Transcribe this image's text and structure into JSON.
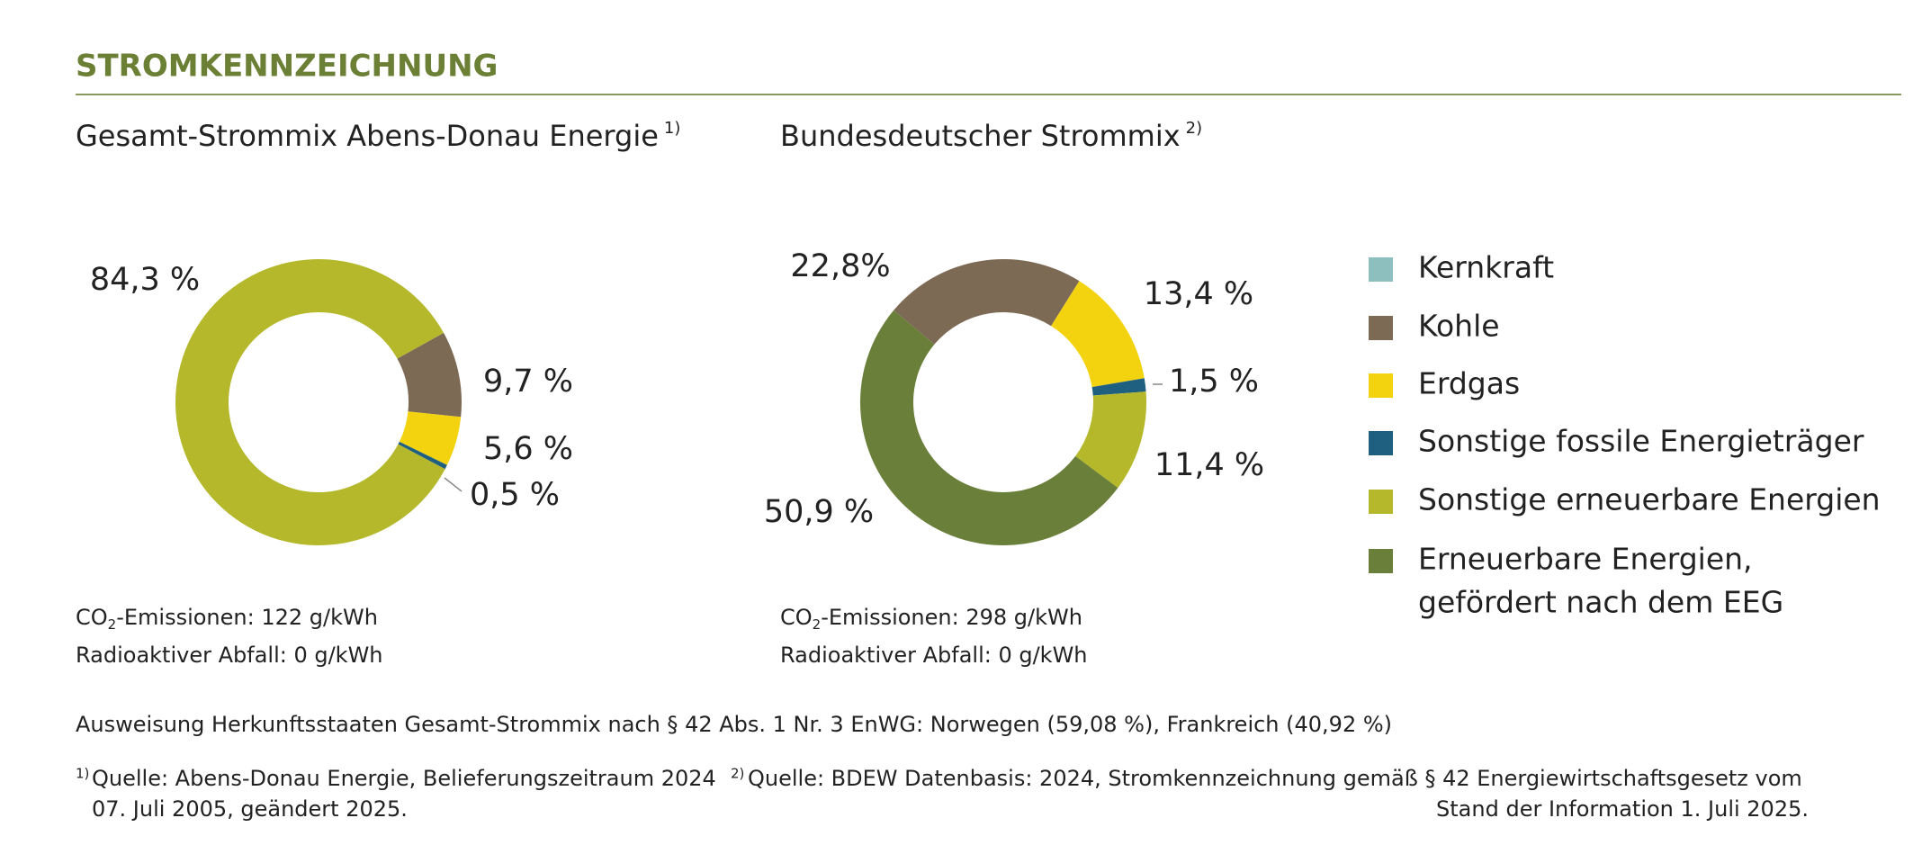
{
  "header": {
    "title": "STROMKENNZEICHNUNG"
  },
  "chart_data": [
    {
      "type": "donut",
      "title": "Gesamt-Strommix Abens-Donau Energie",
      "title_note": "1)",
      "values": [
        9.7,
        5.6,
        0.5,
        84.3
      ],
      "value_labels": [
        "9,7 %",
        "5,6 %",
        "0,5 %",
        "84,3 %"
      ],
      "colors": [
        "#7d6a55",
        "#f3d20f",
        "#1f5f80",
        "#b4b82a"
      ],
      "info": [
        {
          "prefix": "CO",
          "sub": "2",
          "text": "-Emissionen: 122 g/kWh"
        },
        {
          "text": "Radioaktiver Abfall: 0 g/kWh"
        }
      ]
    },
    {
      "type": "donut",
      "title": "Bundesdeutscher Strommix",
      "title_note": "2)",
      "values": [
        22.8,
        13.4,
        1.5,
        11.4,
        50.9
      ],
      "value_labels": [
        "22,8%",
        "13,4 %",
        "1,5 %",
        "11,4 %",
        "50,9 %"
      ],
      "colors": [
        "#7d6a55",
        "#f3d20f",
        "#1f5f80",
        "#b4b82a",
        "#6a7f3a"
      ],
      "info": [
        {
          "prefix": "CO",
          "sub": "2",
          "text": "-Emissionen: 298 g/kWh"
        },
        {
          "text": "Radioaktiver Abfall: 0 g/kWh"
        }
      ]
    }
  ],
  "legend": {
    "items": [
      {
        "lines": [
          "Kernkraft"
        ],
        "color": "#8dbfbf"
      },
      {
        "lines": [
          "Kohle"
        ],
        "color": "#7d6a55"
      },
      {
        "lines": [
          "Erdgas"
        ],
        "color": "#f3d20f"
      },
      {
        "lines": [
          "Sonstige fossile Energieträger"
        ],
        "color": "#1f5f80"
      },
      {
        "lines": [
          "Sonstige erneuerbare Energien"
        ],
        "color": "#b4b82a"
      },
      {
        "lines": [
          "Erneuerbare Energien,",
          "gefördert nach dem EEG"
        ],
        "color": "#6a7f3a"
      }
    ]
  },
  "origin_note": "Ausweisung Herkunftsstaaten Gesamt-Strommix nach § 42 Abs. 1 Nr. 3 EnWG: Norwegen (59,08 %), Frankreich (40,92 %)",
  "footnotes": [
    {
      "marker": "1)",
      "lines": [
        "Quelle: Abens-Donau Energie, Belieferungszeitraum 2024"
      ]
    },
    {
      "marker": "2)",
      "lines": [
        "Quelle: BDEW Datenbasis: 2024, Stromkennzeichnung gemäß § 42 Energiewirtschaftsgesetz vom",
        "07. Juli 2005, geändert 2025.",
        "Stand der Information 1. Juli 2025."
      ]
    }
  ]
}
